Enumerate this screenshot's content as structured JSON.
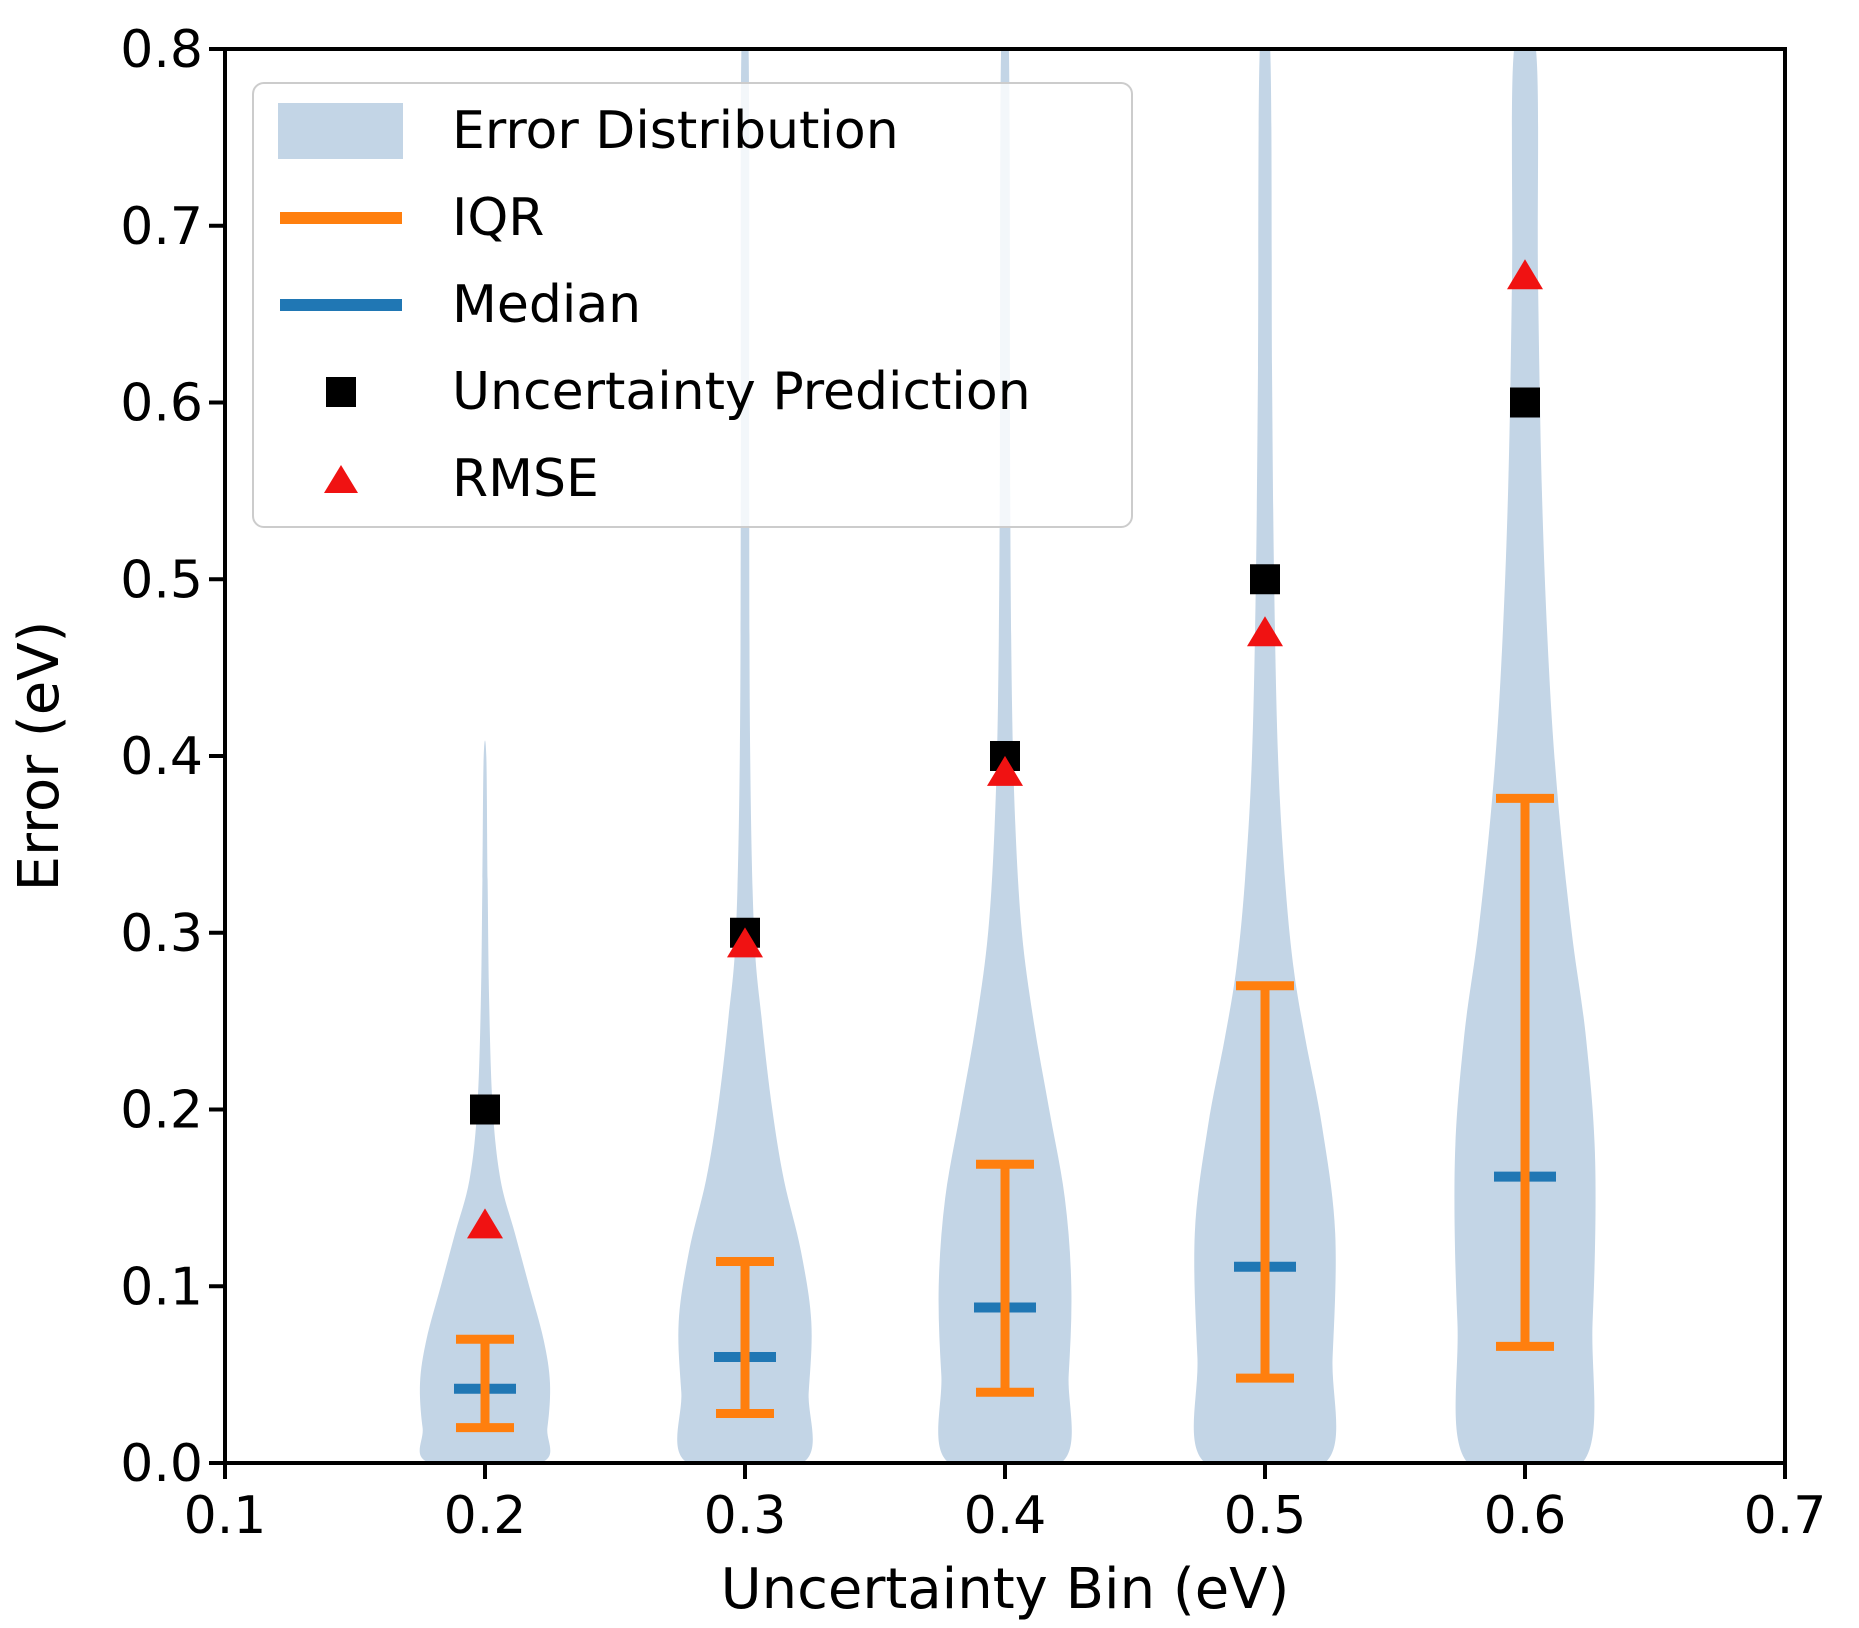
{
  "figure": {
    "background": "#ffffff"
  },
  "axes": {
    "xlabel": "Uncertainty Bin (eV)",
    "ylabel": "Error (eV)",
    "x_tick_labels": [
      "0.1",
      "0.2",
      "0.3",
      "0.4",
      "0.5",
      "0.6",
      "0.7"
    ],
    "y_tick_labels": [
      "0.0",
      "0.1",
      "0.2",
      "0.3",
      "0.4",
      "0.5",
      "0.6",
      "0.7",
      "0.8"
    ]
  },
  "legend": {
    "items": [
      {
        "label": "Error Distribution",
        "marker": "patch",
        "color": "#c3d5e6"
      },
      {
        "label": "IQR",
        "marker": "line",
        "color": "#ff7f0e"
      },
      {
        "label": "Median",
        "marker": "line",
        "color": "#2077b4"
      },
      {
        "label": "Uncertainty Prediction",
        "marker": "square",
        "color": "#000000"
      },
      {
        "label": "RMSE",
        "marker": "triangle",
        "color": "#f01212"
      }
    ]
  },
  "colors": {
    "violin_fill": "#c3d5e6",
    "iqr": "#ff7f0e",
    "median": "#2077b4",
    "uncertainty_prediction": "#000000",
    "rmse": "#f01212",
    "axis": "#000000",
    "text": "#000000"
  },
  "chart_data": {
    "type": "violin",
    "title": "",
    "xlabel": "Uncertainty Bin (eV)",
    "ylabel": "Error (eV)",
    "xlim": [
      0.1,
      0.7
    ],
    "ylim": [
      0.0,
      0.8
    ],
    "x_ticks": [
      0.1,
      0.2,
      0.3,
      0.4,
      0.5,
      0.6,
      0.7
    ],
    "y_ticks": [
      0.0,
      0.1,
      0.2,
      0.3,
      0.4,
      0.5,
      0.6,
      0.7,
      0.8
    ],
    "grid": false,
    "legend_position": "upper left",
    "series": {
      "uncertainty_bins": [
        0.2,
        0.3,
        0.4,
        0.5,
        0.6
      ],
      "q1": [
        0.02,
        0.028,
        0.04,
        0.048,
        0.066
      ],
      "median": [
        0.042,
        0.06,
        0.088,
        0.111,
        0.162
      ],
      "q3": [
        0.07,
        0.114,
        0.169,
        0.27,
        0.376
      ],
      "uncertainty_prediction": [
        0.2,
        0.3,
        0.4,
        0.5,
        0.6
      ],
      "rmse": [
        0.135,
        0.294,
        0.391,
        0.47,
        0.672
      ]
    },
    "violins": [
      {
        "bin": 0.2,
        "profile": [
          [
            0.0,
            0.021
          ],
          [
            0.02,
            0.024
          ],
          [
            0.045,
            0.025
          ],
          [
            0.07,
            0.0225
          ],
          [
            0.1,
            0.017
          ],
          [
            0.13,
            0.0115
          ],
          [
            0.16,
            0.006
          ],
          [
            0.2,
            0.003
          ],
          [
            0.26,
            0.0016
          ],
          [
            0.33,
            0.001
          ],
          [
            0.4,
            0.0005
          ]
        ]
      },
      {
        "bin": 0.3,
        "profile": [
          [
            0.0,
            0.022
          ],
          [
            0.04,
            0.0245
          ],
          [
            0.08,
            0.0255
          ],
          [
            0.12,
            0.0215
          ],
          [
            0.16,
            0.015
          ],
          [
            0.2,
            0.0105
          ],
          [
            0.25,
            0.0065
          ],
          [
            0.3,
            0.0035
          ],
          [
            0.4,
            0.002
          ],
          [
            0.55,
            0.0016
          ],
          [
            0.8,
            0.0014
          ]
        ]
      },
      {
        "bin": 0.4,
        "profile": [
          [
            0.0,
            0.0215
          ],
          [
            0.05,
            0.0245
          ],
          [
            0.1,
            0.0255
          ],
          [
            0.15,
            0.023
          ],
          [
            0.2,
            0.017
          ],
          [
            0.25,
            0.011
          ],
          [
            0.3,
            0.0065
          ],
          [
            0.36,
            0.004
          ],
          [
            0.43,
            0.0027
          ],
          [
            0.55,
            0.002
          ],
          [
            0.8,
            0.0015
          ]
        ]
      },
      {
        "bin": 0.5,
        "profile": [
          [
            0.0,
            0.023
          ],
          [
            0.06,
            0.026
          ],
          [
            0.13,
            0.027
          ],
          [
            0.19,
            0.022
          ],
          [
            0.24,
            0.0155
          ],
          [
            0.28,
            0.011
          ],
          [
            0.33,
            0.0077
          ],
          [
            0.4,
            0.005
          ],
          [
            0.5,
            0.0035
          ],
          [
            0.62,
            0.0027
          ],
          [
            0.8,
            0.002
          ]
        ]
      },
      {
        "bin": 0.6,
        "profile": [
          [
            0.0,
            0.022
          ],
          [
            0.08,
            0.026
          ],
          [
            0.17,
            0.027
          ],
          [
            0.24,
            0.0235
          ],
          [
            0.3,
            0.018
          ],
          [
            0.375,
            0.0127
          ],
          [
            0.45,
            0.0092
          ],
          [
            0.55,
            0.0065
          ],
          [
            0.67,
            0.005
          ],
          [
            0.8,
            0.0042
          ]
        ]
      }
    ]
  }
}
